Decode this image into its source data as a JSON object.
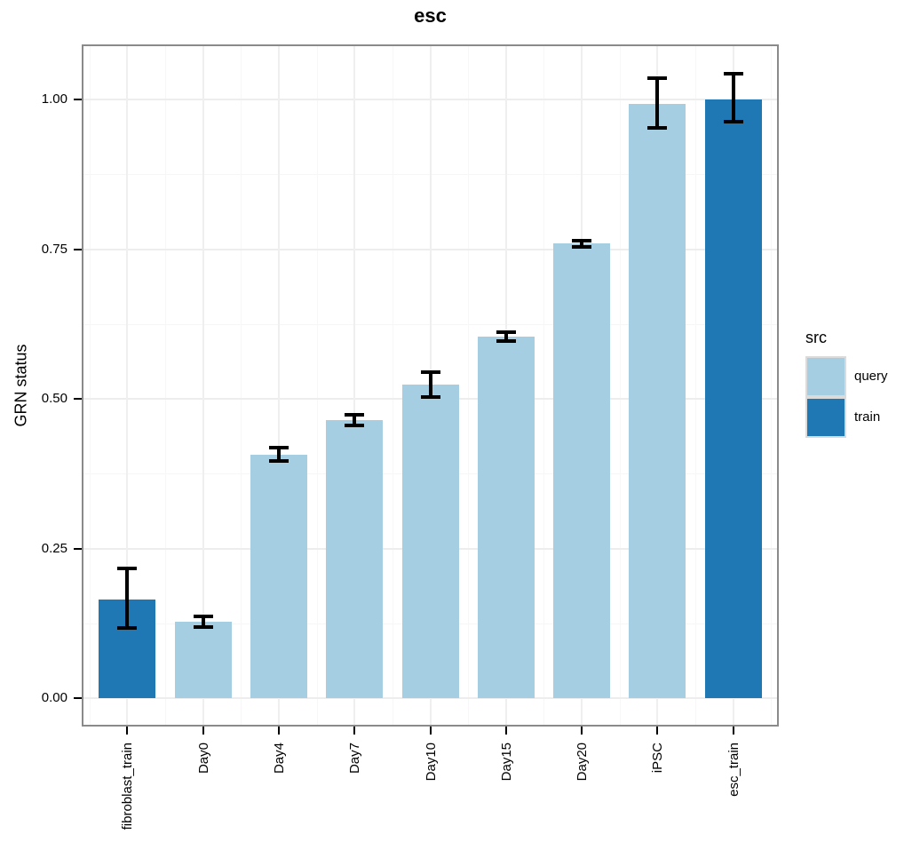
{
  "chart_data": {
    "type": "bar",
    "title": "esc",
    "xlabel": "",
    "ylabel": "GRN status",
    "categories": [
      "fibroblast_train",
      "Day0",
      "Day4",
      "Day7",
      "Day10",
      "Day15",
      "Day20",
      "iPSC",
      "esc_train"
    ],
    "bars": [
      {
        "category": "fibroblast_train",
        "src": "train",
        "value": 0.165,
        "err_lo": 0.117,
        "err_hi": 0.217
      },
      {
        "category": "Day0",
        "src": "query",
        "value": 0.128,
        "err_lo": 0.118,
        "err_hi": 0.137
      },
      {
        "category": "Day4",
        "src": "query",
        "value": 0.406,
        "err_lo": 0.396,
        "err_hi": 0.419
      },
      {
        "category": "Day7",
        "src": "query",
        "value": 0.464,
        "err_lo": 0.456,
        "err_hi": 0.474
      },
      {
        "category": "Day10",
        "src": "query",
        "value": 0.524,
        "err_lo": 0.503,
        "err_hi": 0.545
      },
      {
        "category": "Day15",
        "src": "query",
        "value": 0.604,
        "err_lo": 0.597,
        "err_hi": 0.611
      },
      {
        "category": "Day20",
        "src": "query",
        "value": 0.76,
        "err_lo": 0.754,
        "err_hi": 0.764
      },
      {
        "category": "iPSC",
        "src": "query",
        "value": 0.993,
        "err_lo": 0.952,
        "err_hi": 1.036
      },
      {
        "category": "esc_train",
        "src": "train",
        "value": 1.0,
        "err_lo": 0.963,
        "err_hi": 1.043
      }
    ],
    "ytick_labels": [
      "0.00",
      "0.25",
      "0.50",
      "0.75",
      "1.00"
    ],
    "ytick_values": [
      0,
      0.25,
      0.5,
      0.75,
      1.0
    ],
    "ylim": [
      0,
      1.09
    ],
    "grid": {
      "major": true,
      "minor": true
    },
    "legend": {
      "title": "src",
      "position": "right",
      "entries": [
        {
          "label": "query",
          "color": "#A6CEE3"
        },
        {
          "label": "train",
          "color": "#1F78B4"
        }
      ]
    },
    "colors": {
      "query": "#A6CEE3",
      "train": "#1F78B4"
    }
  }
}
